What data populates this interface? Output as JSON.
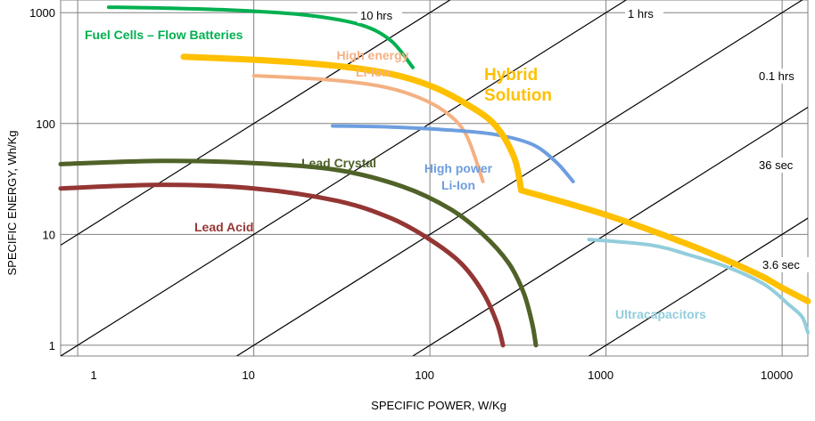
{
  "chart_data": {
    "type": "line",
    "title": "",
    "xlabel": "SPECIFIC POWER, W/Kg",
    "ylabel": "SPECIFIC ENERGY, Wh/Kg",
    "x_scale": "log",
    "y_scale": "log",
    "xlim": [
      0.8,
      14000
    ],
    "ylim": [
      0.8,
      1300
    ],
    "grid": true,
    "x_ticks": [
      {
        "value": 1,
        "label": "1"
      },
      {
        "value": 10,
        "label": "10"
      },
      {
        "value": 100,
        "label": "100"
      },
      {
        "value": 1000,
        "label": "1000"
      },
      {
        "value": 10000,
        "label": "10000"
      }
    ],
    "y_ticks": [
      {
        "value": 1,
        "label": "1"
      },
      {
        "value": 10,
        "label": "10"
      },
      {
        "value": 100,
        "label": "100"
      },
      {
        "value": 1000,
        "label": "1000"
      }
    ],
    "discharge_time_lines": [
      {
        "label": "10 hrs",
        "hours": 10
      },
      {
        "label": "1 hrs",
        "hours": 1
      },
      {
        "label": "0.1 hrs",
        "hours": 0.1
      },
      {
        "label": "36 sec",
        "hours": 0.01
      },
      {
        "label": "3.6 sec",
        "hours": 0.001
      }
    ],
    "series": [
      {
        "name": "Fuel Cells – Flow Batteries",
        "color": "#00B050",
        "points": [
          [
            1.5,
            1120
          ],
          [
            3,
            1100
          ],
          [
            8,
            1050
          ],
          [
            20,
            950
          ],
          [
            40,
            780
          ],
          [
            60,
            560
          ],
          [
            80,
            320
          ]
        ]
      },
      {
        "name": "Hybrid Solution",
        "color": "#FFC000",
        "points": [
          [
            4,
            400
          ],
          [
            12,
            370
          ],
          [
            30,
            330
          ],
          [
            60,
            280
          ],
          [
            100,
            220
          ],
          [
            150,
            160
          ],
          [
            230,
            100
          ],
          [
            300,
            50
          ],
          [
            330,
            25
          ],
          [
            1000,
            15
          ],
          [
            3000,
            8
          ],
          [
            7000,
            4.5
          ],
          [
            10000,
            3.3
          ],
          [
            14000,
            2.5
          ]
        ]
      },
      {
        "name": "High energy Li-Ion",
        "color": "#F4B183",
        "points": [
          [
            10,
            270
          ],
          [
            25,
            250
          ],
          [
            50,
            220
          ],
          [
            80,
            180
          ],
          [
            120,
            130
          ],
          [
            160,
            80
          ],
          [
            200,
            30
          ]
        ]
      },
      {
        "name": "High power Li-Ion",
        "color": "#6D9EDF",
        "points": [
          [
            28,
            95
          ],
          [
            60,
            93
          ],
          [
            120,
            88
          ],
          [
            230,
            80
          ],
          [
            380,
            65
          ],
          [
            520,
            45
          ],
          [
            650,
            30
          ]
        ]
      },
      {
        "name": "Lead Crystal",
        "color": "#4F6228",
        "points": [
          [
            0.8,
            43
          ],
          [
            3,
            46
          ],
          [
            10,
            44
          ],
          [
            30,
            38
          ],
          [
            70,
            27
          ],
          [
            130,
            17
          ],
          [
            200,
            10
          ],
          [
            280,
            5.5
          ],
          [
            340,
            3
          ],
          [
            380,
            1.6
          ],
          [
            400,
            1
          ]
        ]
      },
      {
        "name": "Lead Acid",
        "color": "#943634",
        "points": [
          [
            0.8,
            26
          ],
          [
            3,
            28
          ],
          [
            10,
            26
          ],
          [
            30,
            20
          ],
          [
            60,
            14
          ],
          [
            100,
            9
          ],
          [
            150,
            5.5
          ],
          [
            200,
            3
          ],
          [
            240,
            1.6
          ],
          [
            260,
            1
          ]
        ]
      },
      {
        "name": "Ultracapacitors",
        "color": "#92CDDC",
        "points": [
          [
            800,
            9
          ],
          [
            1800,
            8
          ],
          [
            3000,
            6.5
          ],
          [
            5000,
            5
          ],
          [
            8000,
            3.5
          ],
          [
            11000,
            2.3
          ],
          [
            13000,
            1.8
          ],
          [
            14000,
            1.3
          ]
        ]
      }
    ]
  }
}
